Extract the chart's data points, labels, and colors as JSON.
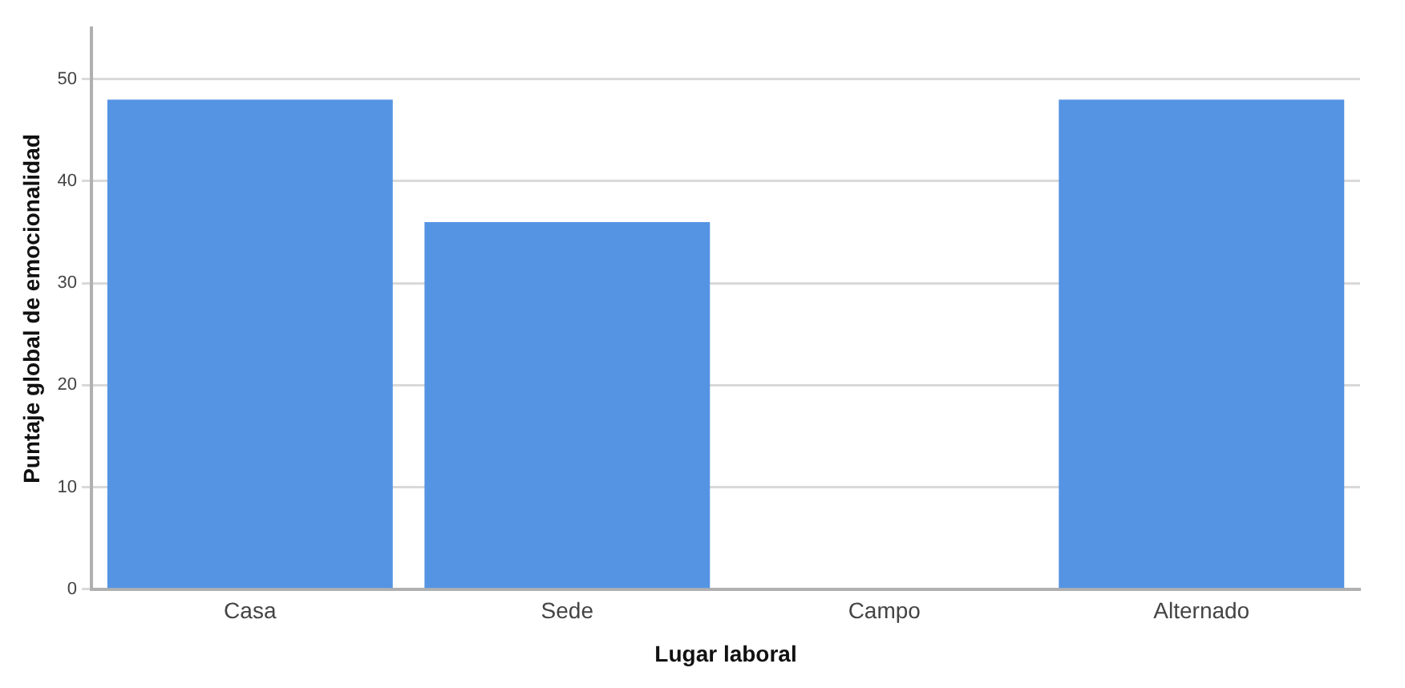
{
  "chart_data": {
    "type": "bar",
    "xlabel": "Lugar laboral",
    "ylabel": "Puntaje global de emocionalidad",
    "categories": [
      "Casa",
      "Sede",
      "Campo",
      "Alternado"
    ],
    "values": [
      48,
      36,
      null,
      48
    ],
    "color": "#5594e3",
    "ylim": [
      0,
      55
    ],
    "yticks": [
      0,
      10,
      20,
      30,
      40,
      50
    ],
    "grid": "y",
    "legend": false
  }
}
